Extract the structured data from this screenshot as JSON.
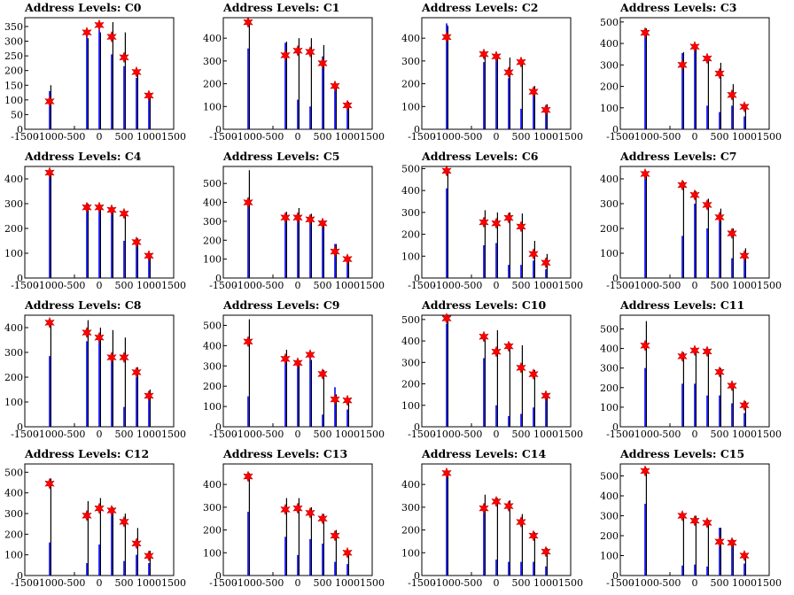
{
  "colors": {
    "bar": "#0000ff",
    "peak": "#000000",
    "marker": "#ff0000",
    "axis": "#000000"
  },
  "chart_data": [
    {
      "type": "bar",
      "title": "Address Levels: C0",
      "xlim": [
        -1500,
        1500
      ],
      "ylim": [
        0,
        380
      ],
      "xticks": [
        -1500,
        -1000,
        -500,
        0,
        500,
        1000,
        1500
      ],
      "yticks": [
        0,
        50,
        100,
        150,
        200,
        250,
        300,
        350
      ],
      "peaks": [
        -1000,
        -250,
        0,
        250,
        500,
        750,
        1000
      ],
      "blue": [
        130,
        320,
        340,
        255,
        215,
        175,
        115
      ],
      "black": [
        150,
        310,
        330,
        365,
        330,
        200,
        120
      ],
      "markers": [
        95,
        330,
        355,
        315,
        245,
        195,
        115
      ]
    },
    {
      "type": "bar",
      "title": "Address Levels: C1",
      "xlim": [
        -1500,
        1500
      ],
      "ylim": [
        0,
        490
      ],
      "xticks": [
        -1500,
        -1000,
        -500,
        0,
        500,
        1000,
        1500
      ],
      "yticks": [
        0,
        100,
        200,
        300,
        400
      ],
      "peaks": [
        -1000,
        -250,
        0,
        250,
        500,
        750,
        1000
      ],
      "blue": [
        355,
        380,
        130,
        100,
        320,
        170,
        90
      ],
      "black": [
        480,
        385,
        400,
        400,
        370,
        200,
        120
      ],
      "markers": [
        470,
        325,
        345,
        340,
        290,
        190,
        105
      ]
    },
    {
      "type": "bar",
      "title": "Address Levels: C2",
      "xlim": [
        -1500,
        1500
      ],
      "ylim": [
        0,
        490
      ],
      "xticks": [
        -1500,
        -1000,
        -500,
        0,
        500,
        1000,
        1500
      ],
      "yticks": [
        0,
        100,
        200,
        300,
        400
      ],
      "peaks": [
        -1000,
        -250,
        0,
        250,
        500,
        750,
        1000
      ],
      "blue": [
        465,
        295,
        320,
        225,
        90,
        170,
        80
      ],
      "black": [
        455,
        340,
        330,
        315,
        305,
        190,
        110
      ],
      "markers": [
        405,
        330,
        320,
        250,
        295,
        165,
        85
      ]
    },
    {
      "type": "bar",
      "title": "Address Levels: C3",
      "xlim": [
        -1500,
        1500
      ],
      "ylim": [
        0,
        520
      ],
      "xticks": [
        -1500,
        -1000,
        -500,
        0,
        500,
        1000,
        1500
      ],
      "yticks": [
        0,
        100,
        200,
        300,
        400,
        500
      ],
      "peaks": [
        -1000,
        -250,
        0,
        250,
        500,
        750,
        1000
      ],
      "blue": [
        430,
        355,
        375,
        110,
        80,
        110,
        60
      ],
      "black": [
        470,
        360,
        390,
        340,
        310,
        210,
        115
      ],
      "markers": [
        450,
        300,
        385,
        330,
        260,
        160,
        105
      ]
    },
    {
      "type": "bar",
      "title": "Address Levels: C4",
      "xlim": [
        -1500,
        1500
      ],
      "ylim": [
        0,
        450
      ],
      "xticks": [
        -1500,
        -1000,
        -500,
        0,
        500,
        1000,
        1500
      ],
      "yticks": [
        0,
        100,
        200,
        300,
        400
      ],
      "peaks": [
        -1000,
        -250,
        0,
        250,
        500,
        750,
        1000
      ],
      "blue": [
        420,
        290,
        280,
        270,
        150,
        140,
        90
      ],
      "black": [
        430,
        300,
        295,
        285,
        265,
        160,
        100
      ],
      "markers": [
        425,
        285,
        285,
        275,
        260,
        145,
        90
      ]
    },
    {
      "type": "bar",
      "title": "Address Levels: C5",
      "xlim": [
        -1500,
        1500
      ],
      "ylim": [
        0,
        590
      ],
      "xticks": [
        -1500,
        -1000,
        -500,
        0,
        500,
        1000,
        1500
      ],
      "yticks": [
        0,
        100,
        200,
        300,
        400,
        500
      ],
      "peaks": [
        -1000,
        -250,
        0,
        250,
        500,
        750,
        1000
      ],
      "blue": [
        415,
        320,
        330,
        300,
        270,
        180,
        90
      ],
      "black": [
        570,
        350,
        370,
        340,
        300,
        180,
        110
      ],
      "markers": [
        400,
        320,
        320,
        310,
        290,
        140,
        100
      ]
    },
    {
      "type": "bar",
      "title": "Address Levels: C6",
      "xlim": [
        -1500,
        1500
      ],
      "ylim": [
        0,
        510
      ],
      "xticks": [
        -1500,
        -1000,
        -500,
        0,
        500,
        1000,
        1500
      ],
      "yticks": [
        0,
        100,
        200,
        300,
        400,
        500
      ],
      "peaks": [
        -1000,
        -250,
        0,
        250,
        500,
        750,
        1000
      ],
      "blue": [
        410,
        150,
        160,
        60,
        60,
        80,
        40
      ],
      "black": [
        500,
        310,
        300,
        300,
        295,
        170,
        110
      ],
      "markers": [
        490,
        255,
        250,
        275,
        235,
        110,
        70
      ]
    },
    {
      "type": "bar",
      "title": "Address Levels: C7",
      "xlim": [
        -1500,
        1500
      ],
      "ylim": [
        0,
        450
      ],
      "xticks": [
        -1500,
        -1000,
        -500,
        0,
        500,
        1000,
        1500
      ],
      "yticks": [
        0,
        100,
        200,
        300,
        400
      ],
      "peaks": [
        -1000,
        -250,
        0,
        250,
        500,
        750,
        1000
      ],
      "blue": [
        420,
        170,
        300,
        200,
        240,
        80,
        90
      ],
      "black": [
        430,
        390,
        350,
        320,
        280,
        200,
        120
      ],
      "markers": [
        420,
        375,
        335,
        295,
        245,
        180,
        90
      ]
    },
    {
      "type": "bar",
      "title": "Address Levels: C8",
      "xlim": [
        -1500,
        1500
      ],
      "ylim": [
        0,
        450
      ],
      "xticks": [
        -1500,
        -1000,
        -500,
        0,
        500,
        1000,
        1500
      ],
      "yticks": [
        0,
        100,
        200,
        300,
        400
      ],
      "peaks": [
        -1000,
        -250,
        0,
        250,
        500,
        750,
        1000
      ],
      "blue": [
        285,
        345,
        350,
        280,
        80,
        200,
        130
      ],
      "black": [
        430,
        430,
        400,
        390,
        360,
        240,
        150
      ],
      "markers": [
        420,
        380,
        360,
        280,
        280,
        220,
        125
      ]
    },
    {
      "type": "bar",
      "title": "Address Levels: C9",
      "xlim": [
        -1500,
        1500
      ],
      "ylim": [
        0,
        550
      ],
      "xticks": [
        -1500,
        -1000,
        -500,
        0,
        500,
        1000,
        1500
      ],
      "yticks": [
        0,
        100,
        200,
        300,
        400,
        500
      ],
      "peaks": [
        -1000,
        -250,
        0,
        250,
        500,
        750,
        1000
      ],
      "blue": [
        150,
        350,
        310,
        335,
        60,
        195,
        85
      ],
      "black": [
        530,
        380,
        320,
        330,
        280,
        160,
        140
      ],
      "markers": [
        420,
        335,
        315,
        355,
        260,
        135,
        130
      ]
    },
    {
      "type": "bar",
      "title": "Address Levels: C10",
      "xlim": [
        -1500,
        1500
      ],
      "ylim": [
        0,
        520
      ],
      "xticks": [
        -1500,
        -1000,
        -500,
        0,
        500,
        1000,
        1500
      ],
      "yticks": [
        0,
        100,
        200,
        300,
        400,
        500
      ],
      "peaks": [
        -1000,
        -250,
        0,
        250,
        500,
        750,
        1000
      ],
      "blue": [
        480,
        320,
        100,
        50,
        60,
        90,
        130
      ],
      "black": [
        520,
        430,
        450,
        390,
        380,
        265,
        150
      ],
      "markers": [
        505,
        420,
        350,
        375,
        275,
        245,
        145
      ]
    },
    {
      "type": "bar",
      "title": "Address Levels: C11",
      "xlim": [
        -1500,
        1500
      ],
      "ylim": [
        0,
        570
      ],
      "xticks": [
        -1500,
        -1000,
        -500,
        0,
        500,
        1000,
        1500
      ],
      "yticks": [
        0,
        100,
        200,
        300,
        400,
        500
      ],
      "peaks": [
        -1000,
        -250,
        0,
        250,
        500,
        750,
        1000
      ],
      "blue": [
        300,
        220,
        220,
        160,
        160,
        120,
        70
      ],
      "black": [
        540,
        380,
        400,
        390,
        300,
        220,
        130
      ],
      "markers": [
        415,
        360,
        390,
        385,
        280,
        210,
        110
      ]
    },
    {
      "type": "bar",
      "title": "Address Levels: C12",
      "xlim": [
        -1500,
        1500
      ],
      "ylim": [
        0,
        540
      ],
      "xticks": [
        -1500,
        -1000,
        -500,
        0,
        500,
        1000,
        1500
      ],
      "yticks": [
        0,
        100,
        200,
        300,
        400,
        500
      ],
      "peaks": [
        -1000,
        -250,
        0,
        250,
        500,
        750,
        1000
      ],
      "blue": [
        160,
        60,
        150,
        320,
        70,
        100,
        60
      ],
      "black": [
        470,
        360,
        375,
        330,
        300,
        230,
        120
      ],
      "markers": [
        445,
        290,
        325,
        315,
        260,
        155,
        95
      ]
    },
    {
      "type": "bar",
      "title": "Address Levels: C13",
      "xlim": [
        -1500,
        1500
      ],
      "ylim": [
        0,
        490
      ],
      "xticks": [
        -1500,
        -1000,
        -500,
        0,
        500,
        1000,
        1500
      ],
      "yticks": [
        0,
        100,
        200,
        300,
        400
      ],
      "peaks": [
        -1000,
        -250,
        0,
        250,
        500,
        750,
        1000
      ],
      "blue": [
        280,
        170,
        90,
        160,
        140,
        60,
        50
      ],
      "black": [
        450,
        340,
        340,
        300,
        270,
        200,
        110
      ],
      "markers": [
        435,
        290,
        295,
        275,
        250,
        175,
        100
      ]
    },
    {
      "type": "bar",
      "title": "Address Levels: C14",
      "xlim": [
        -1500,
        1500
      ],
      "ylim": [
        0,
        490
      ],
      "xticks": [
        -1500,
        -1000,
        -500,
        0,
        500,
        1000,
        1500
      ],
      "yticks": [
        0,
        100,
        200,
        300,
        400
      ],
      "peaks": [
        -1000,
        -250,
        0,
        250,
        500,
        750,
        1000
      ],
      "blue": [
        460,
        275,
        70,
        60,
        60,
        60,
        40
      ],
      "black": [
        460,
        355,
        340,
        330,
        270,
        190,
        120
      ],
      "markers": [
        450,
        295,
        325,
        305,
        235,
        175,
        105
      ]
    },
    {
      "type": "bar",
      "title": "Address Levels: C15",
      "xlim": [
        -1500,
        1500
      ],
      "ylim": [
        0,
        560
      ],
      "xticks": [
        -1500,
        -1000,
        -500,
        0,
        500,
        1000,
        1500
      ],
      "yticks": [
        0,
        100,
        200,
        300,
        400,
        500
      ],
      "peaks": [
        -1000,
        -250,
        0,
        250,
        500,
        750,
        1000
      ],
      "blue": [
        360,
        50,
        55,
        45,
        240,
        150,
        60
      ],
      "black": [
        540,
        310,
        300,
        280,
        240,
        180,
        110
      ],
      "markers": [
        525,
        300,
        275,
        265,
        170,
        165,
        100
      ]
    }
  ]
}
